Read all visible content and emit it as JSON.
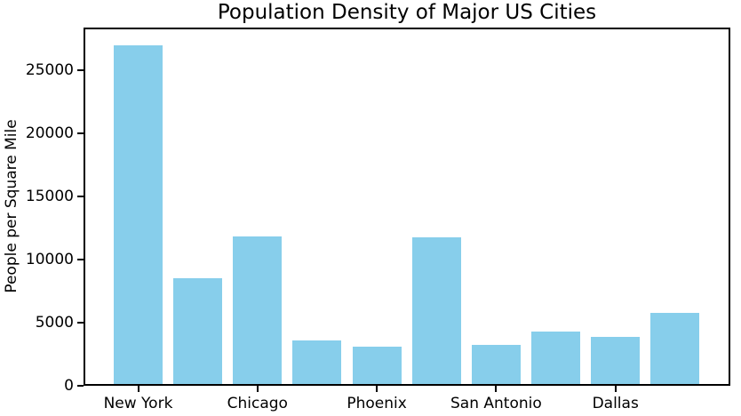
{
  "chart_data": {
    "type": "bar",
    "title": "Population Density of Major US Cities",
    "xlabel": "",
    "ylabel": "People per Square Mile",
    "categories": [
      "New York",
      "",
      "Chicago",
      "",
      "Phoenix",
      "",
      "San Antonio",
      "",
      "Dallas",
      ""
    ],
    "values": [
      27000,
      8500,
      11850,
      3600,
      3100,
      11750,
      3250,
      4300,
      3900,
      5775
    ],
    "visible_xtick_labels": [
      "New York",
      "Chicago",
      "Phoenix",
      "San Antonio",
      "Dallas"
    ],
    "xtick_bar_indices": [
      0,
      2,
      4,
      6,
      8
    ],
    "yticks": [
      0,
      5000,
      10000,
      15000,
      20000,
      25000
    ],
    "ylim": [
      0,
      28400
    ],
    "bar_color": "#87CEEB",
    "spine_color": "#000000",
    "text_color": "#000000",
    "background_color": "#ffffff",
    "grid": false,
    "legend": null
  }
}
